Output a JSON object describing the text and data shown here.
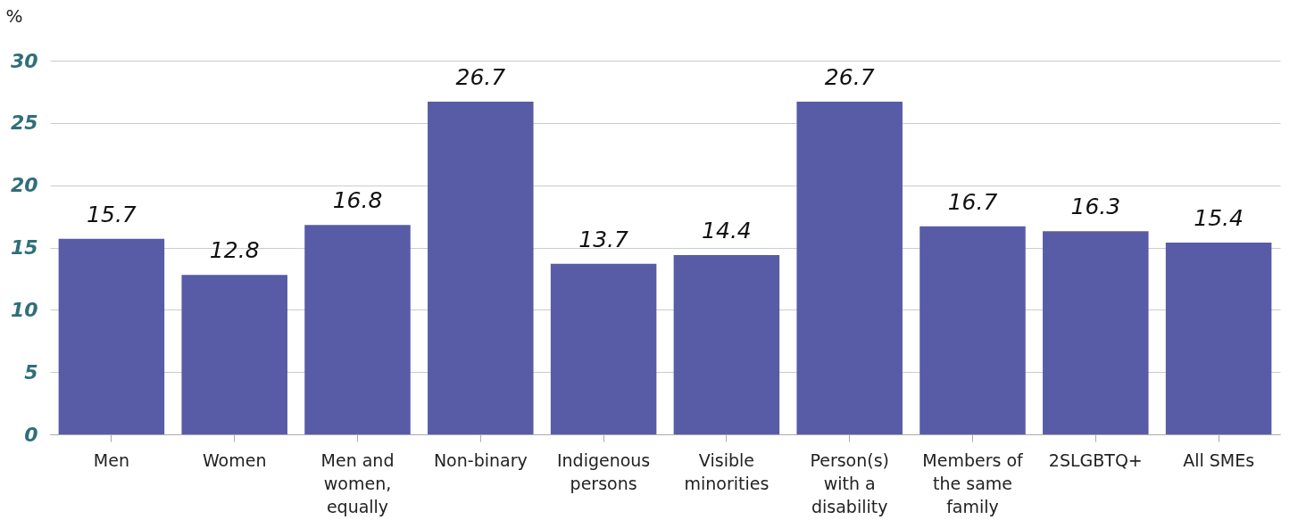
{
  "chart_data": {
    "type": "bar",
    "ylabel": "%",
    "categories": [
      "Men",
      "Women",
      "Men and women, equally",
      "Non-binary",
      "Indigenous persons",
      "Visible minorities",
      "Person(s) with a disability",
      "Members of the same family",
      "2SLGBTQ+",
      "All SMEs"
    ],
    "values": [
      15.7,
      12.8,
      16.8,
      26.7,
      13.7,
      14.4,
      26.7,
      16.7,
      16.3,
      15.4
    ],
    "color": "#585ba6",
    "ylim": [
      0,
      30
    ],
    "yticks": [
      0,
      5,
      10,
      15,
      20,
      25,
      30
    ],
    "grid": "y",
    "data_labels": true
  }
}
